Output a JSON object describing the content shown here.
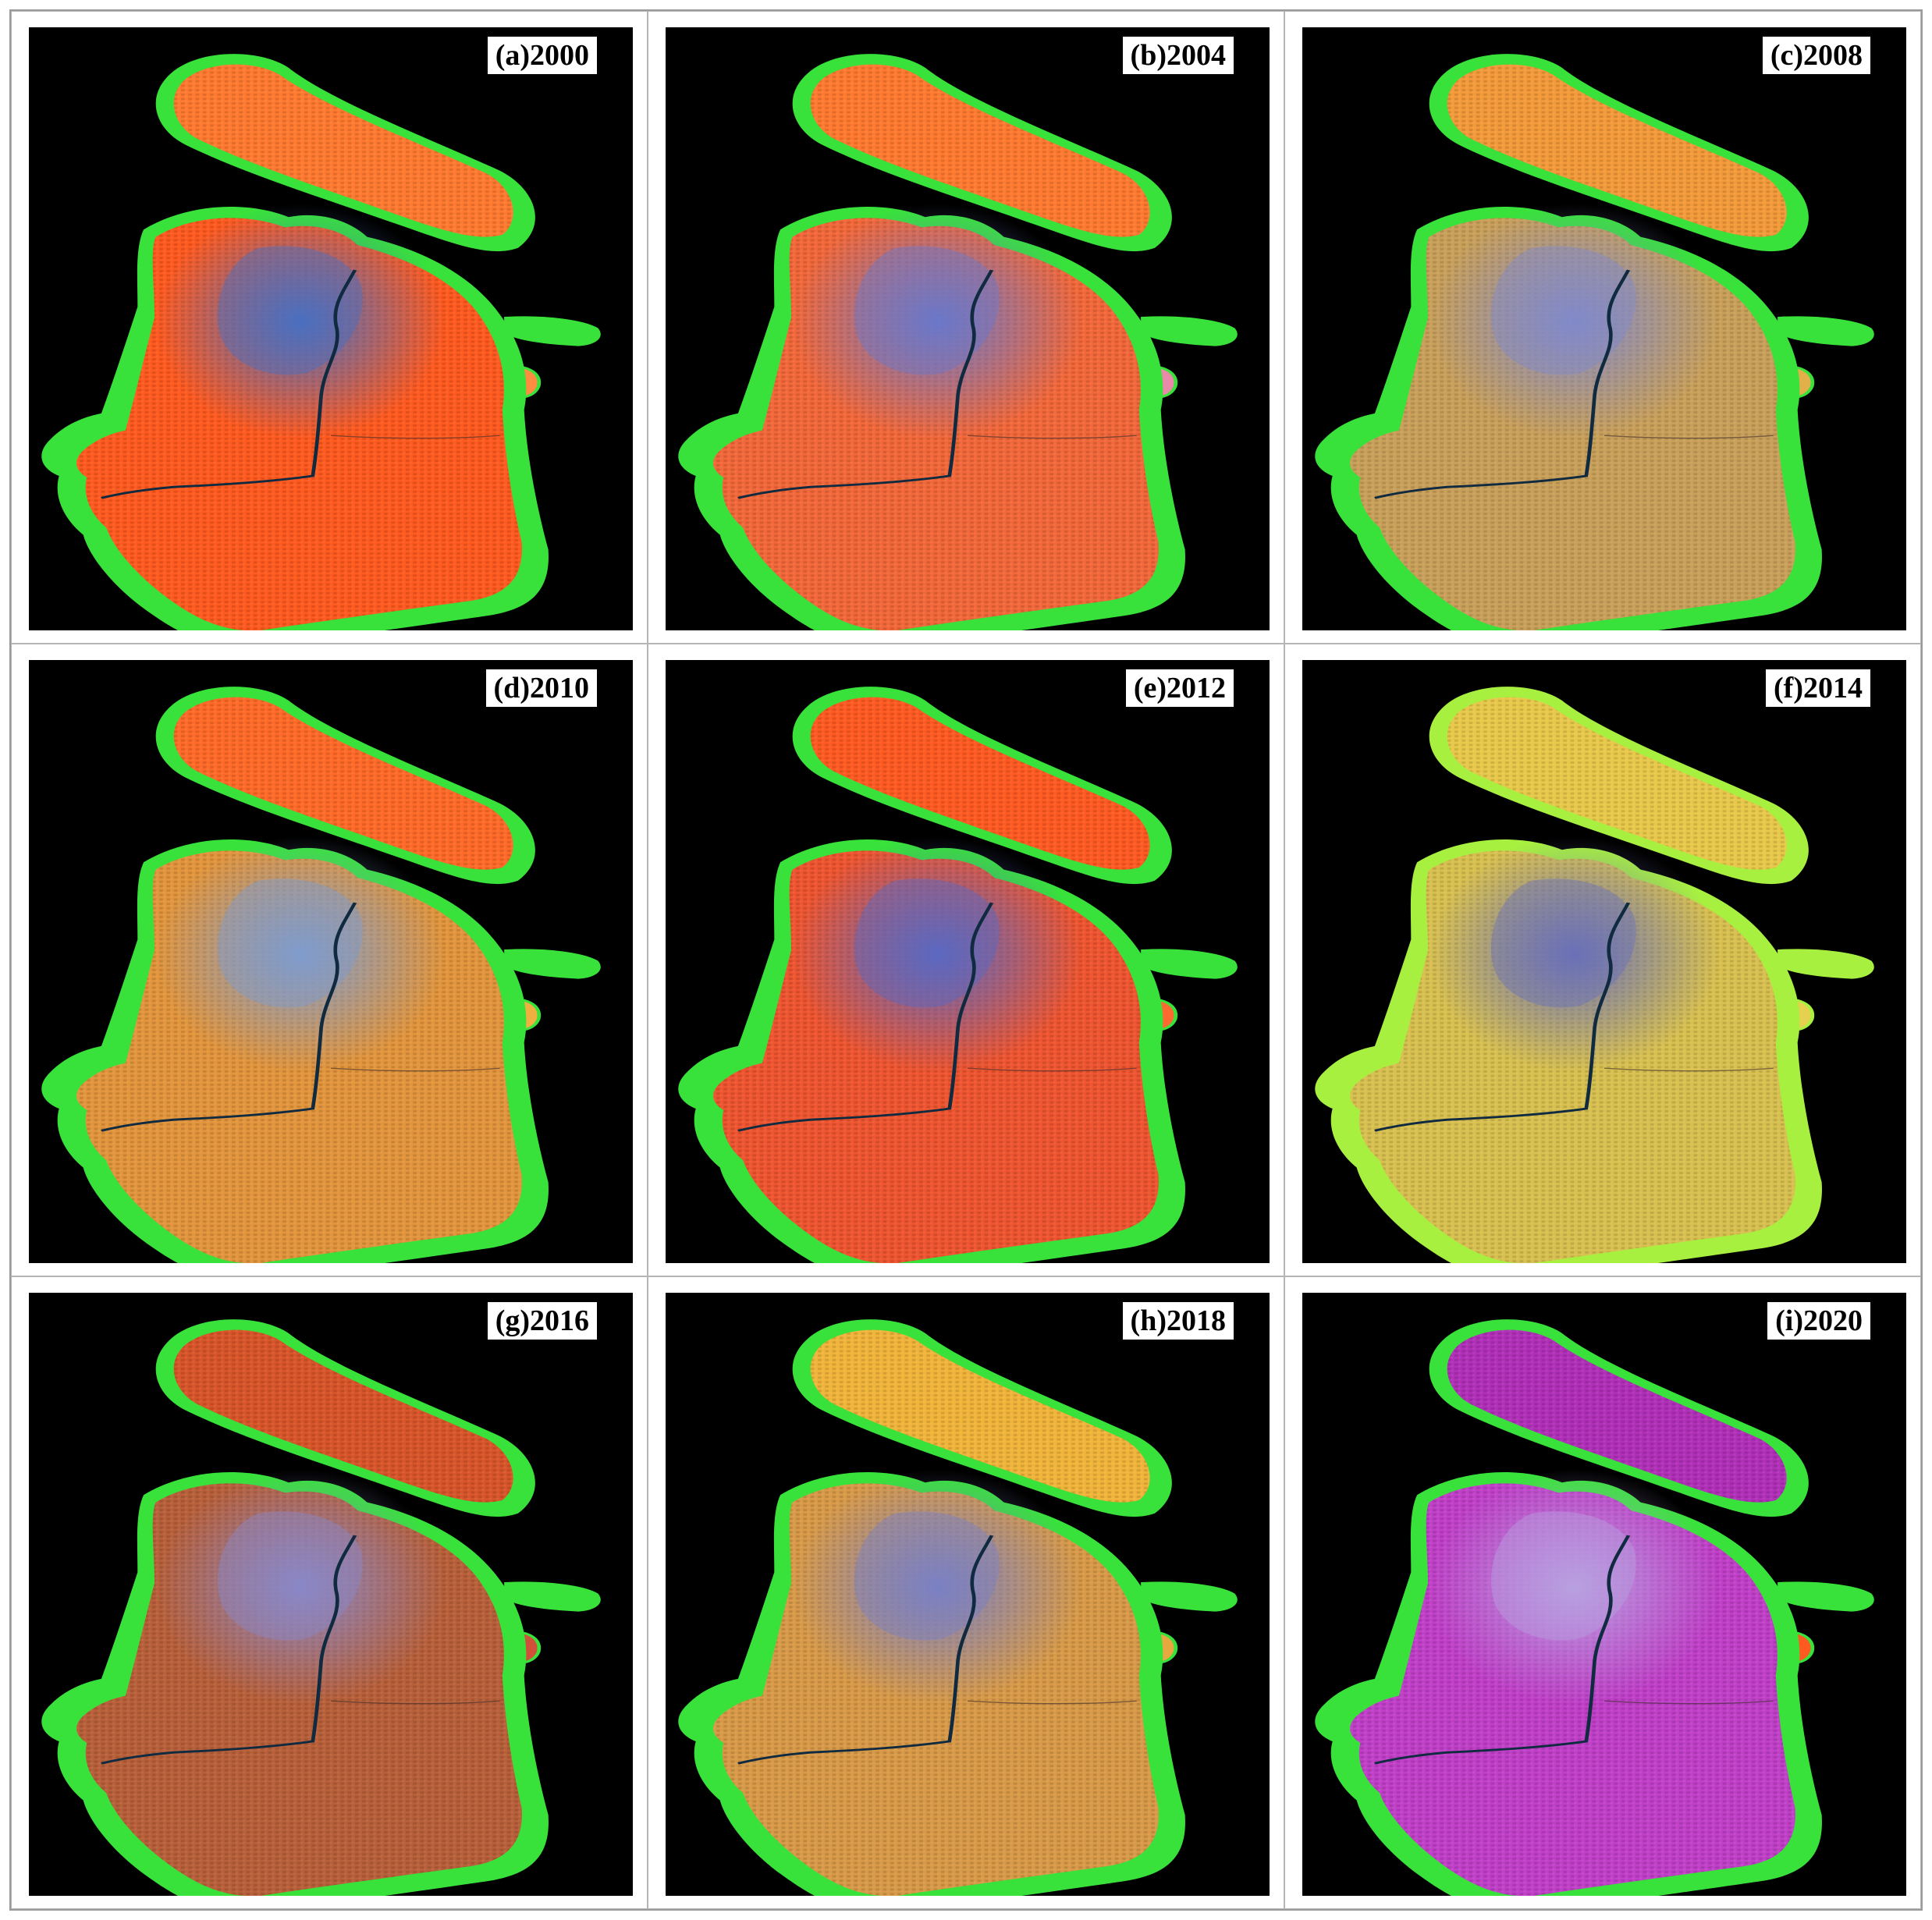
{
  "panels": [
    {
      "label": "(a)2000",
      "colors": {
        "island": "#ff7a30",
        "city": "#ff5a1f",
        "center": "#4a6fc0",
        "rim": "#38e23a",
        "accent": "#ff8c40"
      }
    },
    {
      "label": "(b)2004",
      "colors": {
        "island": "#ff7a30",
        "city": "#f2683a",
        "center": "#6b78c9",
        "rim": "#38e23a",
        "accent": "#e98aa8"
      }
    },
    {
      "label": "(c)2008",
      "colors": {
        "island": "#f39a3a",
        "city": "#c9a05a",
        "center": "#8189c9",
        "rim": "#38e23a",
        "accent": "#e2b04a"
      }
    },
    {
      "label": "(d)2010",
      "colors": {
        "island": "#ff6a28",
        "city": "#e2953c",
        "center": "#7f9ccd",
        "rim": "#38e23a",
        "accent": "#f0b040"
      }
    },
    {
      "label": "(e)2012",
      "colors": {
        "island": "#ff5a22",
        "city": "#ee5530",
        "center": "#5b68c0",
        "rim": "#38e23a",
        "accent": "#ff6a30"
      }
    },
    {
      "label": "(f)2014",
      "colors": {
        "island": "#e8c84a",
        "city": "#d8c050",
        "center": "#6a70b8",
        "rim": "#a8f040",
        "accent": "#e6d050"
      }
    },
    {
      "label": "(g)2016",
      "colors": {
        "island": "#d8552a",
        "city": "#b8603a",
        "center": "#8a88c8",
        "rim": "#38e23a",
        "accent": "#d0503a"
      }
    },
    {
      "label": "(h)2018",
      "colors": {
        "island": "#f0b43a",
        "city": "#d89a48",
        "center": "#7a80c4",
        "rim": "#38e23a",
        "accent": "#e8a840"
      }
    },
    {
      "label": "(i)2020",
      "colors": {
        "island": "#b030b8",
        "city": "#c040c8",
        "center": "#b8a0e0",
        "rim": "#38e23a",
        "accent": "#ff5a20"
      }
    }
  ]
}
